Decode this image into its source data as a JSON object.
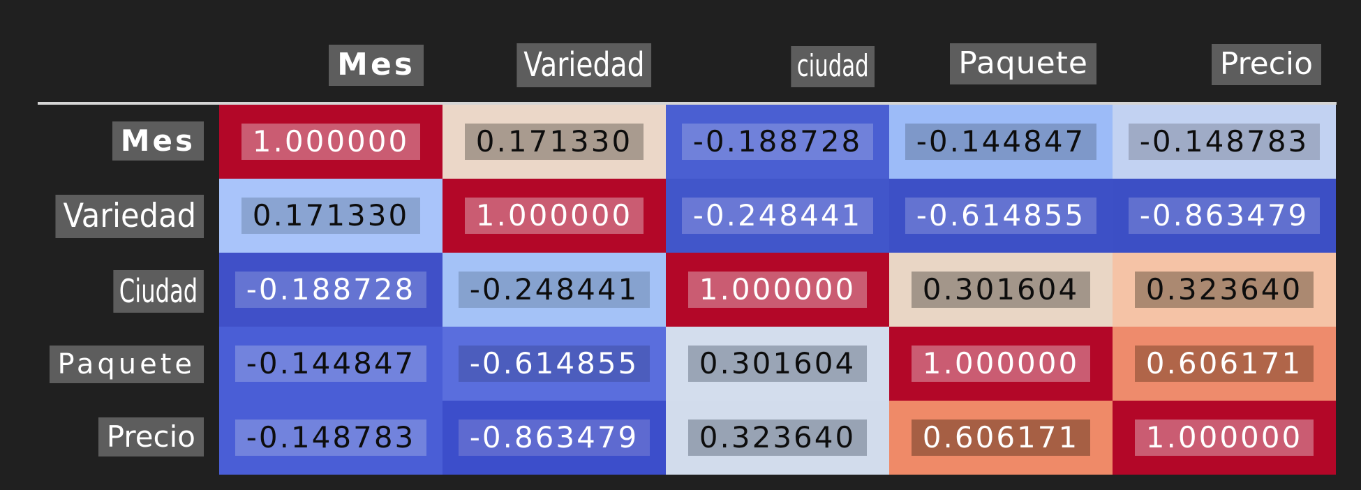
{
  "chart_data": {
    "type": "heatmap",
    "title": "",
    "description": "Correlation matrix heatmap (coolwarm colormap) on dark background",
    "row_labels": [
      "Mes",
      "Variedad",
      "Ciudad",
      "Paquete",
      "Precio"
    ],
    "col_labels": [
      "Mes",
      "Variedad",
      "ciudad",
      "Paquete",
      "Precio"
    ],
    "matrix": [
      [
        1.0,
        0.17133,
        -0.188728,
        -0.144847,
        -0.148783
      ],
      [
        0.17133,
        1.0,
        -0.248441,
        -0.614855,
        -0.863479
      ],
      [
        -0.188728,
        -0.248441,
        1.0,
        0.301604,
        0.32364
      ],
      [
        -0.144847,
        -0.614855,
        0.301604,
        1.0,
        0.606171
      ],
      [
        -0.148783,
        -0.863479,
        0.32364,
        0.606171,
        1.0
      ]
    ],
    "colormap": "coolwarm",
    "legend": "none",
    "cells": [
      {
        "text": "1.000000",
        "bg": "#b30728",
        "fg": "#ffffff",
        "box": "#ca5c72"
      },
      {
        "text": "0.171330",
        "bg": "#ebd7c8",
        "fg": "#0d0d0d",
        "box": "#a99b8f"
      },
      {
        "text": "-0.188728",
        "bg": "#4a5fd2",
        "fg": "#0d0d0d",
        "box": "#7081da"
      },
      {
        "text": "-0.144847",
        "bg": "#9cbbf8",
        "fg": "#0d0d0d",
        "box": "#7e98c9"
      },
      {
        "text": "-0.148783",
        "bg": "#c2d2f2",
        "fg": "#0d0d0d",
        "box": "#9fabc6"
      },
      {
        "text": "0.171330",
        "bg": "#a9c4fa",
        "fg": "#0d0d0d",
        "box": "#8aa4d2"
      },
      {
        "text": "1.000000",
        "bg": "#b30728",
        "fg": "#ffffff",
        "box": "#ca5c72"
      },
      {
        "text": "-0.248441",
        "bg": "#4156ca",
        "fg": "#ffffff",
        "box": "#6a78d5"
      },
      {
        "text": "-0.614855",
        "bg": "#3d50c6",
        "fg": "#ffffff",
        "box": "#6473d1"
      },
      {
        "text": "-0.863479",
        "bg": "#3c4fc5",
        "fg": "#ffffff",
        "box": "#6170cf"
      },
      {
        "text": "-0.188728",
        "bg": "#4050c8",
        "fg": "#ffffff",
        "box": "#6574d2"
      },
      {
        "text": "-0.248441",
        "bg": "#a4c2f7",
        "fg": "#0d0d0d",
        "box": "#86a2cf"
      },
      {
        "text": "1.000000",
        "bg": "#b30728",
        "fg": "#ffffff",
        "box": "#ca5c72"
      },
      {
        "text": "0.301604",
        "bg": "#e9d6c5",
        "fg": "#0d0d0d",
        "box": "#a3968a"
      },
      {
        "text": "0.323640",
        "bg": "#f5c3a6",
        "fg": "#0d0d0d",
        "box": "#ab8971"
      },
      {
        "text": "-0.144847",
        "bg": "#4a5ed6",
        "fg": "#0d0d0d",
        "box": "#7283dd"
      },
      {
        "text": "-0.614855",
        "bg": "#5a6edd",
        "fg": "#ffffff",
        "box": "#4c5dbd"
      },
      {
        "text": "0.301604",
        "bg": "#d3dded",
        "fg": "#0d0d0d",
        "box": "#9aa5b6"
      },
      {
        "text": "1.000000",
        "bg": "#b30728",
        "fg": "#ffffff",
        "box": "#ca5c72"
      },
      {
        "text": "0.606171",
        "bg": "#ee8b6c",
        "fg": "#ffffff",
        "box": "#b06549"
      },
      {
        "text": "-0.148783",
        "bg": "#4a5ed6",
        "fg": "#0d0d0d",
        "box": "#7283dd"
      },
      {
        "text": "-0.863479",
        "bg": "#3c4ecb",
        "fg": "#ffffff",
        "box": "#5e6ad0"
      },
      {
        "text": "0.323640",
        "bg": "#d2dcec",
        "fg": "#0d0d0d",
        "box": "#98a3b4"
      },
      {
        "text": "0.606171",
        "bg": "#ef8a68",
        "fg": "#ffffff",
        "box": "#a65f44"
      },
      {
        "text": "1.000000",
        "bg": "#b30728",
        "fg": "#ffffff",
        "box": "#ca5c72"
      }
    ]
  },
  "colors": {
    "background": "#202020",
    "divider": "#d5d5d5",
    "label_box": "#5d5d5d",
    "label_text": "#ffffff",
    "diagonal_red": "#b30728",
    "strong_blue": "#3c4fc5"
  }
}
